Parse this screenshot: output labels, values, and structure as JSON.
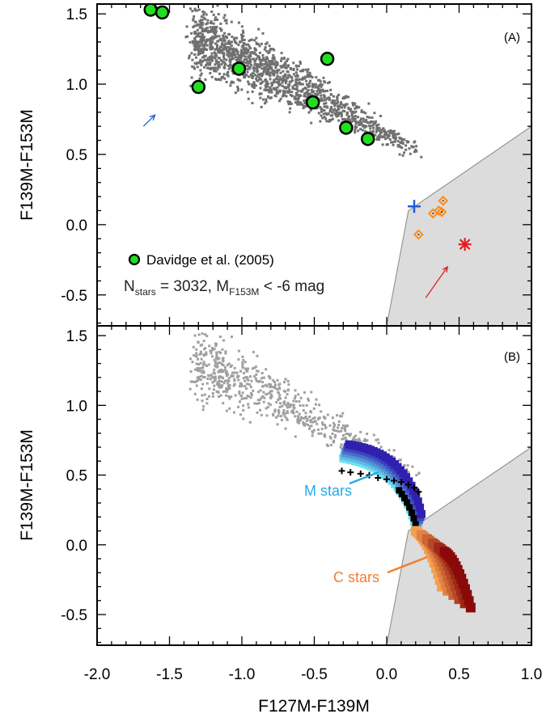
{
  "chart_data": [
    {
      "panel": "(A)",
      "type": "scatter",
      "xlabel": "",
      "ylabel": "F139M-F153M",
      "xlim": [
        -2.0,
        1.0
      ],
      "ylim": [
        -0.72,
        1.57
      ],
      "yticks": [
        "-0.5",
        "0.0",
        "0.5",
        "1.0",
        "1.5"
      ],
      "yticks_values": [
        -0.5,
        0.0,
        0.5,
        1.0,
        1.5
      ],
      "shaded_region": [
        [
          0.0,
          -0.72
        ],
        [
          0.15,
          0.1
        ],
        [
          1.0,
          0.7
        ],
        [
          1.0,
          -0.72
        ]
      ],
      "series": [
        {
          "name": "Davidge et al. (2005)",
          "marker": "circle",
          "color": "#22dd22",
          "points": [
            [
              -1.63,
              1.53
            ],
            [
              -1.55,
              1.51
            ],
            [
              -1.3,
              0.98
            ],
            [
              -1.02,
              1.11
            ],
            [
              -0.41,
              1.18
            ],
            [
              -0.51,
              0.87
            ],
            [
              -0.28,
              0.69
            ],
            [
              -0.13,
              0.61
            ]
          ]
        },
        {
          "marker": "diamond",
          "color": "#ff8c1a",
          "points": [
            [
              0.22,
              -0.07
            ],
            [
              0.32,
              0.08
            ],
            [
              0.36,
              0.1
            ],
            [
              0.38,
              0.09
            ],
            [
              0.39,
              0.17
            ]
          ]
        },
        {
          "marker": "plus",
          "color": "#1f5fd6",
          "points": [
            [
              0.19,
              0.13
            ]
          ]
        },
        {
          "marker": "asterisk",
          "color": "#e02020",
          "points": [
            [
              0.54,
              -0.14
            ]
          ]
        }
      ],
      "n_stars_label": "N",
      "n_stars_sub": "stars",
      "n_stars_rest": " = 3032, M",
      "m_sub": "F153M",
      "m_rest": " < -6 mag",
      "arrows": [
        {
          "color": "#1f5fd6",
          "from": [
            -1.68,
            0.7
          ],
          "to": [
            -1.6,
            0.78
          ]
        },
        {
          "color": "#e02020",
          "from": [
            0.27,
            -0.52
          ],
          "to": [
            0.42,
            -0.3
          ]
        }
      ]
    },
    {
      "panel": "(B)",
      "type": "scatter",
      "xlabel": "F127M-F139M",
      "ylabel": "F139M-F153M",
      "xlim": [
        -2.0,
        1.0
      ],
      "ylim": [
        -0.72,
        1.57
      ],
      "xticks": [
        "-2.0",
        "-1.5",
        "-1.0",
        "-0.5",
        "0.0",
        "0.5",
        "1.0"
      ],
      "xticks_values": [
        -2.0,
        -1.5,
        -1.0,
        -0.5,
        0.0,
        0.5,
        1.0
      ],
      "yticks": [
        "-0.5",
        "0.0",
        "0.5",
        "1.0",
        "1.5"
      ],
      "yticks_values": [
        -0.5,
        0.0,
        0.5,
        1.0,
        1.5
      ],
      "shaded_region": [
        [
          0.0,
          -0.72
        ],
        [
          0.15,
          0.1
        ],
        [
          1.0,
          0.7
        ],
        [
          1.0,
          -0.72
        ]
      ],
      "m_stars_label": "M stars",
      "c_stars_label": "C stars",
      "m_color": "#29a8e8",
      "c_color": "#f08030",
      "plus_track": [
        [
          -0.31,
          0.53
        ],
        [
          -0.25,
          0.52
        ],
        [
          -0.18,
          0.51
        ],
        [
          -0.12,
          0.5
        ],
        [
          -0.06,
          0.48
        ],
        [
          0.0,
          0.47
        ],
        [
          0.05,
          0.46
        ],
        [
          0.1,
          0.45
        ],
        [
          0.15,
          0.43
        ],
        [
          0.19,
          0.41
        ],
        [
          0.22,
          0.38
        ]
      ]
    }
  ],
  "colors": {
    "field_stars_a": "#707070",
    "field_stars_b": "#a0a0a0",
    "shade": "#dcdcdc",
    "m_track_light": "#6ae0f0",
    "m_track_dark": "#3020b0",
    "c_track_light": "#f5a050",
    "c_track_dark": "#8a0a0a"
  }
}
